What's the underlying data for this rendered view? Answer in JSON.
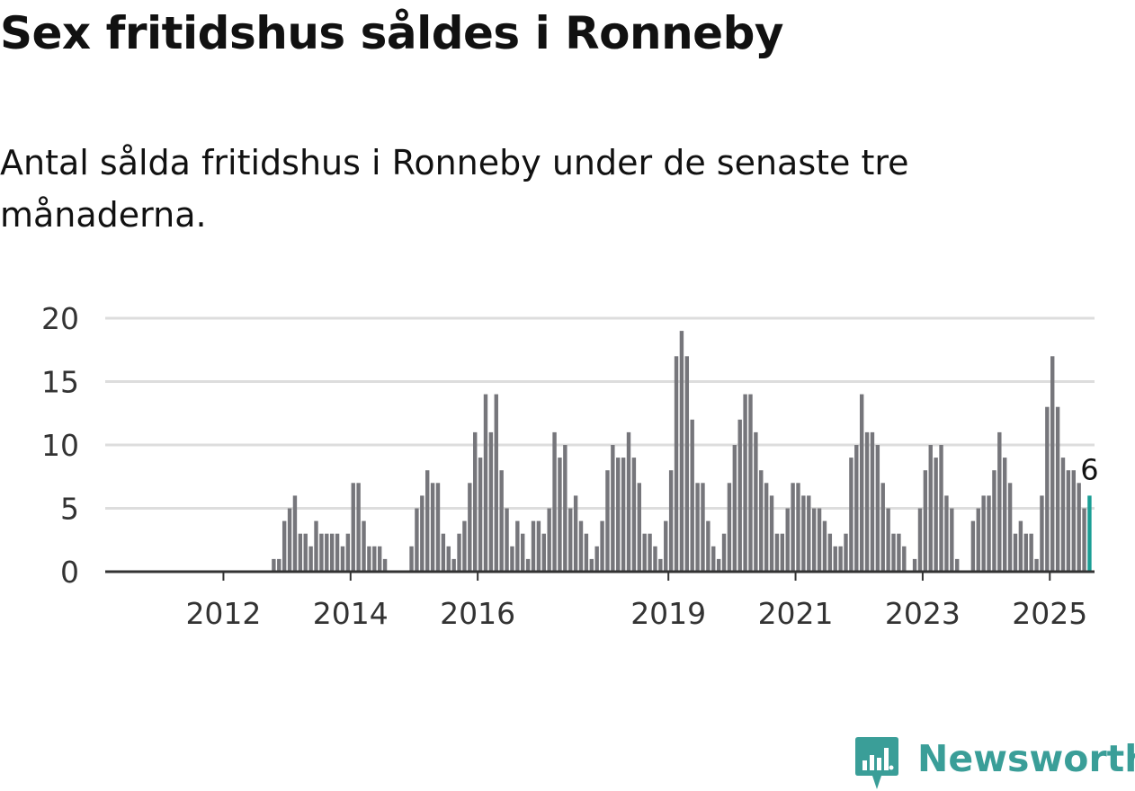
{
  "title": "Sex fritidshus såldes i Ronneby",
  "subtitle": "Antal sålda fritidshus i Ronneby under de senaste tre månaderna.",
  "brand": {
    "name": "Newsworthy",
    "icon": "newsworthy-logo-icon",
    "color": "#3a9e98"
  },
  "chart_data": {
    "type": "bar",
    "title": "Sex fritidshus såldes i Ronneby",
    "subtitle": "Antal sålda fritidshus i Ronneby under de senaste tre månaderna.",
    "xlabel": "",
    "ylabel": "",
    "ylim": [
      0,
      20
    ],
    "yticks": [
      0,
      5,
      10,
      15,
      20
    ],
    "grid": true,
    "x_start": "2011-01",
    "x_end": "2025-01",
    "xticks": [
      {
        "label": "2012",
        "date": "2012-01"
      },
      {
        "label": "2014",
        "date": "2014-01"
      },
      {
        "label": "2016",
        "date": "2016-01"
      },
      {
        "label": "2019",
        "date": "2019-01"
      },
      {
        "label": "2021",
        "date": "2021-01"
      },
      {
        "label": "2023",
        "date": "2023-01"
      },
      {
        "label": "2025",
        "date": "2025-01"
      }
    ],
    "colors": {
      "bar": "#76767b",
      "highlight": "#1a9e95",
      "grid": "#dddddd",
      "axis": "#333333"
    },
    "highlight_label": "6",
    "values": [
      0,
      0,
      0,
      0,
      0,
      0,
      0,
      0,
      0,
      0,
      0,
      0,
      0,
      0,
      0,
      0,
      0,
      0,
      0,
      0,
      0,
      1,
      1,
      4,
      5,
      6,
      3,
      3,
      2,
      4,
      3,
      3,
      3,
      3,
      2,
      3,
      7,
      7,
      4,
      2,
      2,
      2,
      1,
      0,
      0,
      0,
      0,
      2,
      5,
      6,
      8,
      7,
      7,
      3,
      2,
      1,
      3,
      4,
      7,
      11,
      9,
      14,
      11,
      14,
      8,
      5,
      2,
      4,
      3,
      1,
      4,
      4,
      3,
      5,
      11,
      9,
      10,
      5,
      6,
      4,
      3,
      1,
      2,
      4,
      8,
      10,
      9,
      9,
      11,
      9,
      7,
      3,
      3,
      2,
      1,
      4,
      8,
      17,
      19,
      17,
      12,
      7,
      7,
      4,
      2,
      1,
      3,
      7,
      10,
      12,
      14,
      14,
      11,
      8,
      7,
      6,
      3,
      3,
      5,
      7,
      7,
      6,
      6,
      5,
      5,
      4,
      3,
      2,
      2,
      3,
      9,
      10,
      14,
      11,
      11,
      10,
      7,
      5,
      3,
      3,
      2,
      0,
      1,
      5,
      8,
      10,
      9,
      10,
      6,
      5,
      1,
      0,
      0,
      4,
      5,
      6,
      6,
      8,
      11,
      9,
      7,
      3,
      4,
      3,
      3,
      1,
      6,
      13,
      17,
      13,
      9,
      8,
      8,
      7,
      5,
      6
    ]
  }
}
